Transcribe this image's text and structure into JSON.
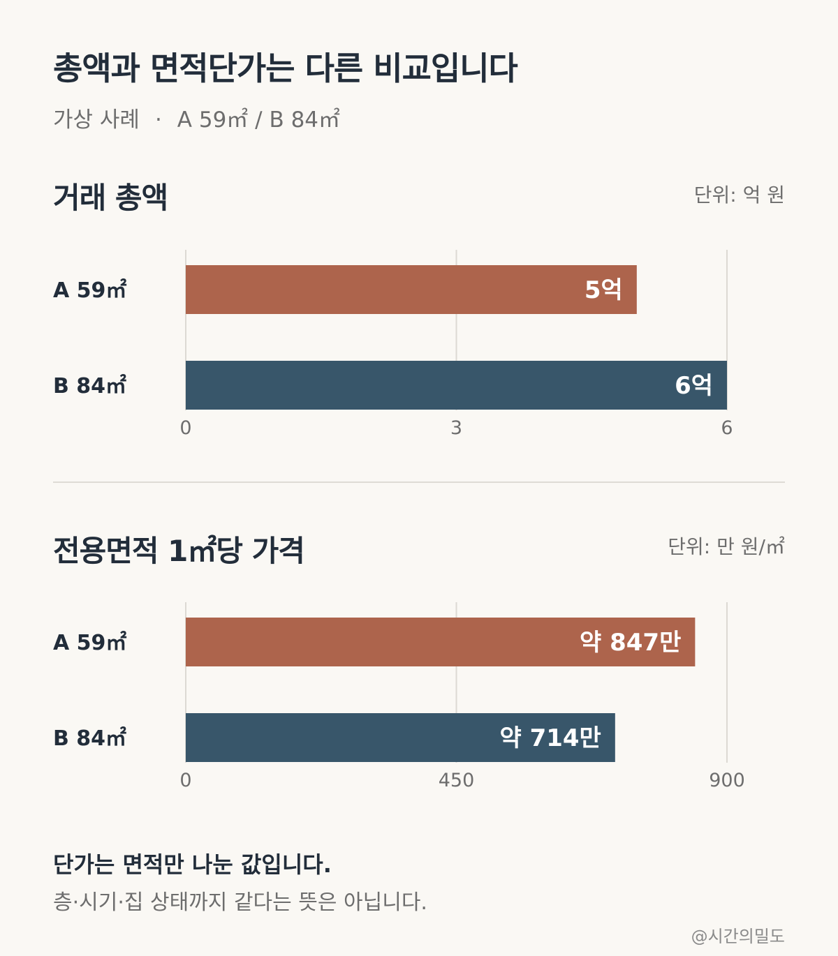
{
  "title": "총액과 면적단가는 다른 비교입니다",
  "subtitle": {
    "left": "가상 사례",
    "sep": "·",
    "right": "A 59㎡ / B 84㎡"
  },
  "colors": {
    "a": "#ad644c",
    "b": "#38566a",
    "grid": "#dcd9d3",
    "background": "#faf8f4"
  },
  "chart_data": [
    {
      "type": "bar",
      "orientation": "horizontal",
      "title": "거래 총액",
      "unit_label": "단위: 억 원",
      "categories": [
        "A 59㎡",
        "B 84㎡"
      ],
      "values": [
        5,
        6
      ],
      "value_labels": [
        "5억",
        "6억"
      ],
      "xlim": [
        0,
        6
      ],
      "ticks": [
        0,
        3,
        6
      ],
      "grid": true,
      "colors": [
        "#ad644c",
        "#38566a"
      ]
    },
    {
      "type": "bar",
      "orientation": "horizontal",
      "title": "전용면적 1㎡당 가격",
      "unit_label": "단위: 만 원/㎡",
      "categories": [
        "A 59㎡",
        "B 84㎡"
      ],
      "values": [
        847,
        714
      ],
      "value_labels": [
        "약 847만",
        "약 714만"
      ],
      "xlim": [
        0,
        900
      ],
      "ticks": [
        0,
        450,
        900
      ],
      "grid": true,
      "colors": [
        "#ad644c",
        "#38566a"
      ]
    }
  ],
  "footer": {
    "bold": "단가는 면적만 나눈 값입니다.",
    "text": "층·시기·집 상태까지 같다는 뜻은 아닙니다."
  },
  "credit": "@시간의밀도"
}
